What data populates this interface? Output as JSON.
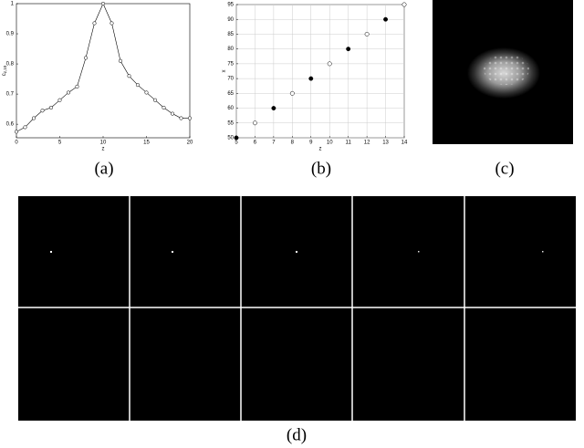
{
  "chart_data": [
    {
      "type": "line",
      "xlabel": "z",
      "ylabel": "c",
      "ylabel_sub": "z,10",
      "x": [
        0,
        1,
        2,
        3,
        4,
        5,
        6,
        7,
        8,
        9,
        10,
        11,
        12,
        13,
        14,
        15,
        16,
        17,
        18,
        19,
        20
      ],
      "values": [
        0.575,
        0.59,
        0.62,
        0.645,
        0.655,
        0.68,
        0.705,
        0.725,
        0.82,
        0.935,
        1.0,
        0.935,
        0.81,
        0.76,
        0.73,
        0.705,
        0.68,
        0.655,
        0.635,
        0.62,
        0.62
      ],
      "color": "#000000",
      "xlim": [
        0,
        20
      ],
      "ylim": [
        0.555,
        1.0
      ],
      "xticks": [
        0,
        5,
        10,
        15,
        20
      ],
      "yticks": [
        0.6,
        0.7,
        0.8,
        0.9,
        1
      ],
      "grid": false
    },
    {
      "type": "scatter",
      "xlabel": "z",
      "ylabel": "x",
      "x": [
        5,
        6,
        7,
        8,
        9,
        10,
        11,
        12,
        13,
        14
      ],
      "values": [
        50,
        55,
        60,
        65,
        70,
        75,
        80,
        85,
        90,
        95
      ],
      "filled": [
        true,
        false,
        true,
        false,
        true,
        false,
        true,
        false,
        true,
        false
      ],
      "color": "#000000",
      "xlim": [
        5,
        14
      ],
      "ylim": [
        50,
        95
      ],
      "xticks": [
        5,
        6,
        7,
        8,
        9,
        10,
        11,
        12,
        13,
        14
      ],
      "yticks": [
        50,
        55,
        60,
        65,
        70,
        75,
        80,
        85,
        90,
        95
      ],
      "grid": true
    }
  ],
  "panels": [
    "(a)",
    "(b)",
    "(c)",
    "(d)"
  ]
}
